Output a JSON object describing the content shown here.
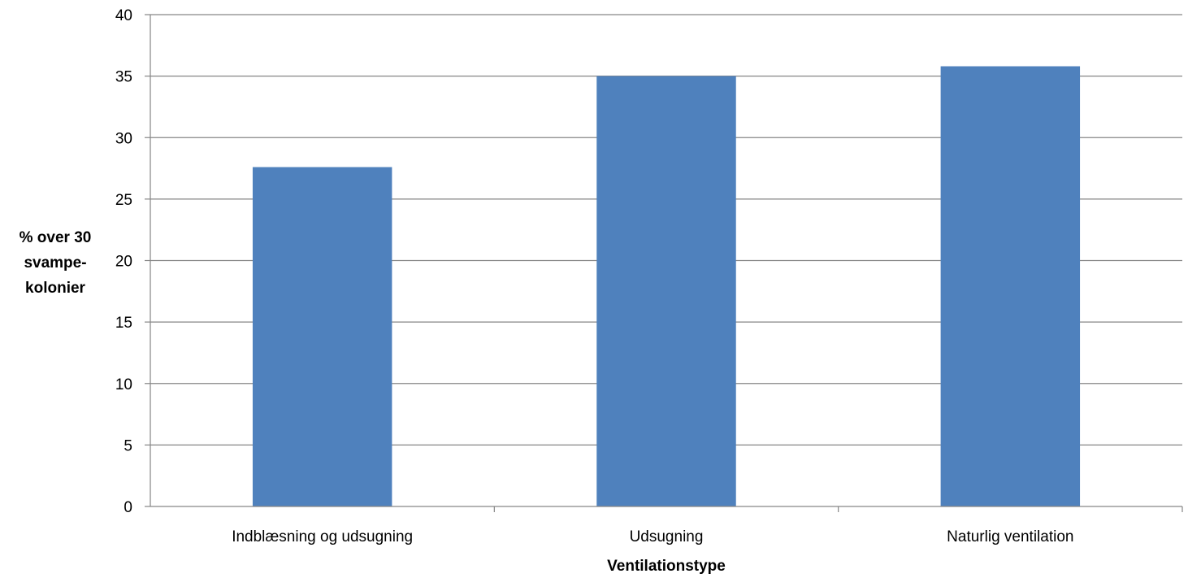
{
  "chart_data": {
    "type": "bar",
    "categories": [
      "Indblæsning og udsugning",
      "Udsugning",
      "Naturlig ventilation"
    ],
    "values": [
      27.6,
      35.0,
      35.8
    ],
    "title": "",
    "xlabel": "Ventilationstype",
    "ylabel_lines": [
      "% over 30",
      "svampe-",
      "kolonier"
    ],
    "ylim": [
      0,
      40
    ],
    "yticks": [
      0,
      5,
      10,
      15,
      20,
      25,
      30,
      35,
      40
    ],
    "grid": true,
    "legend": "none",
    "bar_color": "#4F81BD"
  }
}
